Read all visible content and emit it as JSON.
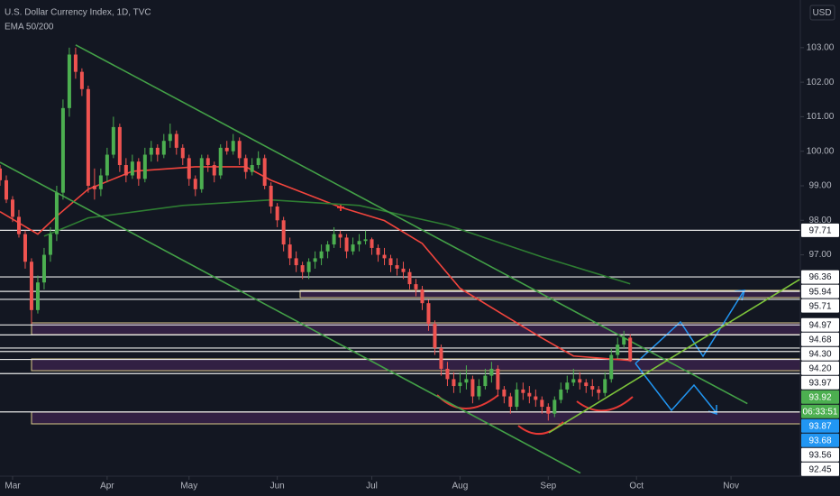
{
  "header": {
    "title": "U.S. Dollar Currency Index, 1D, TVC",
    "indicator": "EMA 50/200",
    "currency": "USD"
  },
  "chart_data": {
    "type": "candlestick",
    "up_color": "#4caf50",
    "down_color": "#ef5350",
    "xlim": [
      -2,
      125
    ],
    "xticks": [
      {
        "value": 0,
        "label": "Mar"
      },
      {
        "value": 15,
        "label": "Apr"
      },
      {
        "value": 28,
        "label": "May"
      },
      {
        "value": 42,
        "label": "Jun"
      },
      {
        "value": 57,
        "label": "Jul"
      },
      {
        "value": 71,
        "label": "Aug"
      },
      {
        "value": 85,
        "label": "Sep"
      },
      {
        "value": 99,
        "label": "Oct"
      },
      {
        "value": 114,
        "label": "Nov"
      }
    ],
    "ylim": [
      90.59,
      104.38
    ],
    "yticks": [
      {
        "value": 97,
        "label": "97.00"
      },
      {
        "value": 98,
        "label": "98.00"
      },
      {
        "value": 99,
        "label": "99.00"
      },
      {
        "value": 100,
        "label": "100.00"
      },
      {
        "value": 101,
        "label": "101.00"
      },
      {
        "value": 102,
        "label": "102.00"
      },
      {
        "value": 103,
        "label": "103.00"
      }
    ],
    "candles": [
      [
        99.5,
        99.6,
        99.0,
        99.16
      ],
      [
        99.16,
        99.3,
        98.5,
        98.6
      ],
      [
        98.6,
        98.7,
        97.95,
        98.1
      ],
      [
        98.1,
        98.3,
        97.5,
        97.6
      ],
      [
        97.6,
        97.7,
        96.6,
        96.8
      ],
      [
        96.8,
        96.9,
        95.0,
        95.4
      ],
      [
        95.4,
        96.4,
        95.3,
        96.2
      ],
      [
        96.2,
        97.2,
        96.0,
        97.0
      ],
      [
        97.0,
        97.8,
        96.8,
        97.6
      ],
      [
        97.6,
        99.0,
        97.4,
        98.8
      ],
      [
        98.8,
        101.5,
        98.6,
        101.25
      ],
      [
        101.25,
        103.0,
        101.0,
        102.8
      ],
      [
        102.8,
        103.0,
        102.1,
        102.3
      ],
      [
        102.3,
        102.4,
        101.6,
        101.8
      ],
      [
        101.8,
        101.9,
        98.8,
        99.0
      ],
      [
        99.0,
        99.5,
        98.6,
        98.9
      ],
      [
        98.9,
        99.5,
        98.7,
        99.3
      ],
      [
        99.3,
        100.1,
        99.1,
        99.9
      ],
      [
        99.9,
        101.0,
        99.8,
        100.7
      ],
      [
        100.7,
        100.8,
        99.4,
        99.6
      ],
      [
        99.6,
        99.8,
        99.1,
        99.3
      ],
      [
        99.3,
        99.9,
        99.2,
        99.7
      ],
      [
        99.7,
        99.8,
        99.0,
        99.2
      ],
      [
        99.2,
        100.1,
        99.1,
        99.9
      ],
      [
        99.9,
        100.3,
        99.7,
        100.1
      ],
      [
        100.1,
        100.2,
        99.7,
        99.9
      ],
      [
        99.9,
        100.5,
        99.8,
        100.3
      ],
      [
        100.3,
        100.8,
        100.1,
        100.5
      ],
      [
        100.5,
        100.6,
        99.9,
        100.1
      ],
      [
        100.1,
        100.2,
        99.6,
        99.8
      ],
      [
        99.8,
        99.9,
        99.0,
        99.2
      ],
      [
        99.2,
        99.3,
        98.7,
        98.9
      ],
      [
        98.9,
        99.9,
        98.8,
        99.8
      ],
      [
        99.8,
        99.9,
        99.4,
        99.6
      ],
      [
        99.6,
        99.7,
        99.1,
        99.3
      ],
      [
        99.3,
        100.2,
        99.2,
        100.1
      ],
      [
        100.1,
        100.3,
        99.9,
        100.0
      ],
      [
        100.0,
        100.5,
        99.9,
        100.3
      ],
      [
        100.3,
        100.4,
        99.6,
        99.8
      ],
      [
        99.8,
        99.9,
        99.2,
        99.4
      ],
      [
        99.4,
        99.8,
        99.3,
        99.6
      ],
      [
        99.6,
        100.0,
        99.5,
        99.8
      ],
      [
        99.8,
        99.9,
        98.9,
        99.0
      ],
      [
        99.0,
        99.1,
        98.2,
        98.4
      ],
      [
        98.4,
        98.5,
        97.8,
        98.0
      ],
      [
        98.0,
        98.1,
        97.1,
        97.3
      ],
      [
        97.3,
        97.5,
        96.7,
        96.9
      ],
      [
        96.9,
        97.1,
        96.5,
        96.7
      ],
      [
        96.7,
        96.8,
        96.3,
        96.5
      ],
      [
        96.5,
        96.9,
        96.3,
        96.8
      ],
      [
        96.8,
        97.1,
        96.6,
        96.9
      ],
      [
        96.9,
        97.3,
        96.7,
        97.1
      ],
      [
        97.1,
        97.4,
        96.9,
        97.3
      ],
      [
        97.3,
        97.8,
        97.2,
        97.6
      ],
      [
        97.6,
        97.7,
        97.2,
        97.5
      ],
      [
        97.5,
        97.6,
        96.9,
        97.1
      ],
      [
        97.1,
        97.5,
        97.0,
        97.3
      ],
      [
        97.3,
        97.6,
        97.1,
        97.4
      ],
      [
        97.4,
        97.7,
        97.3,
        97.45
      ],
      [
        97.45,
        97.5,
        97.0,
        97.2
      ],
      [
        97.2,
        97.3,
        96.8,
        97.0
      ],
      [
        97.0,
        97.2,
        96.7,
        96.9
      ],
      [
        96.9,
        97.0,
        96.5,
        96.7
      ],
      [
        96.7,
        96.9,
        96.4,
        96.6
      ],
      [
        96.6,
        96.8,
        96.3,
        96.5
      ],
      [
        96.5,
        96.6,
        96.0,
        96.15
      ],
      [
        96.15,
        96.3,
        95.8,
        96.0
      ],
      [
        96.0,
        96.1,
        95.4,
        95.6
      ],
      [
        95.6,
        95.7,
        94.8,
        95.0
      ],
      [
        95.0,
        95.1,
        94.1,
        94.3
      ],
      [
        94.3,
        94.4,
        93.5,
        93.7
      ],
      [
        93.7,
        93.9,
        93.2,
        93.4
      ],
      [
        93.4,
        93.6,
        93.0,
        93.2
      ],
      [
        93.2,
        93.6,
        93.0,
        93.3
      ],
      [
        93.3,
        93.8,
        93.1,
        93.4
      ],
      [
        93.4,
        93.5,
        92.7,
        92.9
      ],
      [
        92.9,
        93.4,
        92.8,
        93.2
      ],
      [
        93.2,
        93.7,
        93.1,
        93.5
      ],
      [
        93.5,
        93.9,
        93.3,
        93.7
      ],
      [
        93.7,
        93.8,
        92.9,
        93.1
      ],
      [
        93.1,
        93.2,
        92.7,
        92.9
      ],
      [
        92.9,
        93.0,
        92.4,
        92.6
      ],
      [
        92.6,
        93.3,
        92.5,
        93.1
      ],
      [
        93.1,
        93.3,
        92.8,
        93.0
      ],
      [
        93.0,
        93.2,
        92.7,
        92.9
      ],
      [
        92.9,
        93.1,
        92.6,
        92.8
      ],
      [
        92.8,
        92.9,
        92.4,
        92.6
      ],
      [
        92.6,
        92.7,
        92.2,
        92.4
      ],
      [
        92.4,
        92.9,
        92.3,
        92.8
      ],
      [
        92.8,
        93.3,
        92.7,
        93.1
      ],
      [
        93.1,
        93.5,
        93.0,
        93.3
      ],
      [
        93.3,
        93.7,
        93.2,
        93.4
      ],
      [
        93.4,
        93.6,
        93.1,
        93.3
      ],
      [
        93.3,
        93.4,
        93.0,
        93.2
      ],
      [
        93.2,
        93.4,
        92.9,
        93.1
      ],
      [
        93.1,
        93.2,
        92.8,
        93.0
      ],
      [
        93.0,
        93.6,
        92.9,
        93.4
      ],
      [
        93.4,
        94.3,
        93.3,
        94.1
      ],
      [
        94.1,
        94.6,
        94.0,
        94.4
      ],
      [
        94.4,
        94.8,
        94.3,
        94.6
      ],
      [
        94.6,
        94.7,
        93.9,
        93.92
      ]
    ],
    "series": [
      {
        "color": "#f2453d",
        "x": [
          -2,
          4,
          7,
          12,
          19,
          29,
          37,
          41,
          52,
          59,
          65,
          71,
          78,
          84,
          89,
          98
        ],
        "values": [
          98.25,
          97.6,
          98.12,
          98.9,
          99.42,
          99.55,
          99.55,
          99.16,
          98.38,
          97.99,
          97.33,
          96.03,
          95.25,
          94.59,
          94.07,
          93.94
        ]
      },
      {
        "color": "#2e7d32",
        "x": [
          5,
          12,
          27,
          41,
          55,
          69,
          84,
          98
        ],
        "values": [
          97.54,
          98.07,
          98.43,
          98.59,
          98.43,
          97.86,
          96.94,
          96.16
        ]
      }
    ],
    "trendlines": [
      {
        "color": "#43a047",
        "x": [
          10,
          116.6
        ],
        "values": [
          103.08,
          92.69
        ]
      },
      {
        "color": "#43a047",
        "x": [
          -2,
          90.1
        ],
        "values": [
          99.68,
          90.68
        ]
      },
      {
        "color": "#7cc33a",
        "x": [
          85.1,
          124.9
        ],
        "values": [
          91.85,
          96.29
        ]
      }
    ],
    "price_levels": [
      97.71,
      96.36,
      95.94,
      95.71,
      94.97,
      94.68,
      {
        "value": 94.3,
        "label": "94.30"
      },
      {
        "value": 94.2,
        "label": "94.20"
      },
      93.97,
      93.56,
      92.45
    ],
    "last_price": 93.92,
    "countdown": "06:33:51",
    "markers": [
      93.87,
      93.68
    ]
  }
}
